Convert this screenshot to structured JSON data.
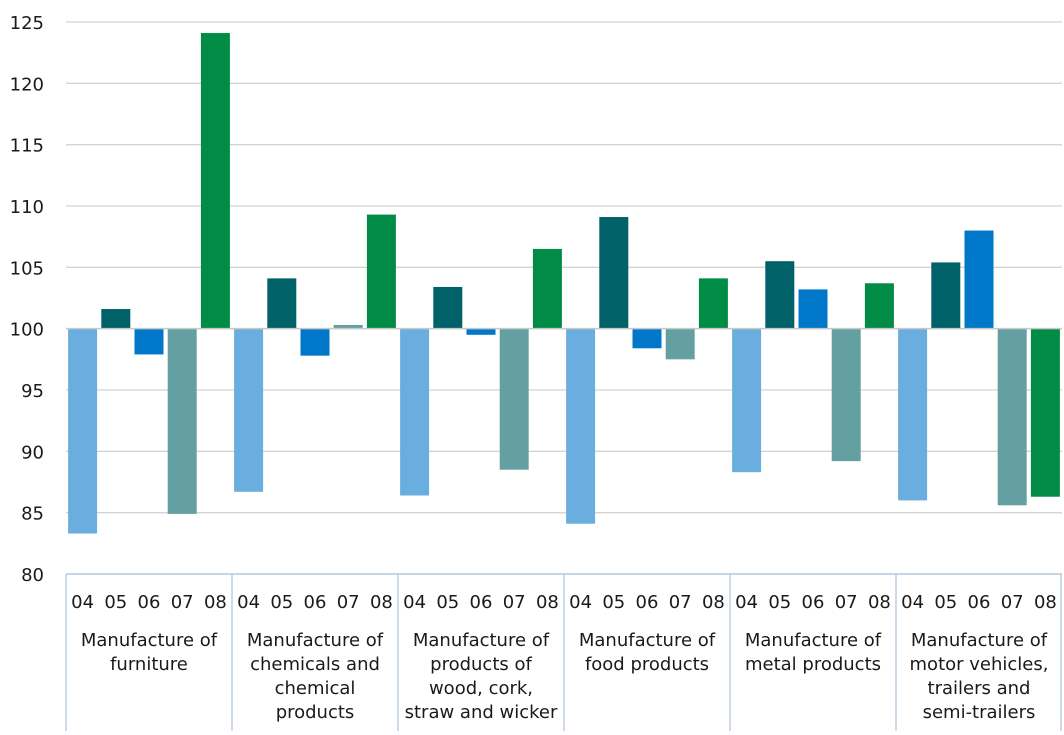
{
  "chart_data": {
    "type": "bar",
    "title": "",
    "xlabel": "",
    "ylabel": "",
    "ylim": [
      80,
      125
    ],
    "yticks": [
      80,
      85,
      90,
      95,
      100,
      105,
      110,
      115,
      120,
      125
    ],
    "baseline": 100,
    "grid": true,
    "legend": "none",
    "year_labels": [
      "04",
      "05",
      "06",
      "07",
      "08"
    ],
    "year_colors": [
      "#6aaee0",
      "#006168",
      "#0077c8",
      "#64a0a2",
      "#008c45"
    ],
    "groups": [
      {
        "label_lines": [
          "Manufacture of",
          "furniture"
        ],
        "values": [
          83.3,
          101.6,
          97.9,
          84.9,
          124.1
        ]
      },
      {
        "label_lines": [
          "Manufacture of",
          "chemicals and",
          "chemical",
          "products"
        ],
        "values": [
          86.7,
          104.1,
          97.8,
          100.3,
          109.3
        ]
      },
      {
        "label_lines": [
          "Manufacture of",
          "products of",
          "wood, cork,",
          "straw and wicker"
        ],
        "values": [
          86.4,
          103.4,
          99.5,
          88.5,
          106.5
        ]
      },
      {
        "label_lines": [
          "Manufacture of",
          "food products"
        ],
        "values": [
          84.1,
          109.1,
          98.4,
          97.5,
          104.1
        ]
      },
      {
        "label_lines": [
          "Manufacture of",
          "metal products"
        ],
        "values": [
          88.3,
          105.5,
          103.2,
          89.2,
          103.7
        ]
      },
      {
        "label_lines": [
          "Manufacture of",
          "motor vehicles,",
          "trailers and",
          "semi-trailers"
        ],
        "values": [
          86.0,
          105.4,
          108.0,
          85.6,
          86.3
        ]
      }
    ]
  }
}
